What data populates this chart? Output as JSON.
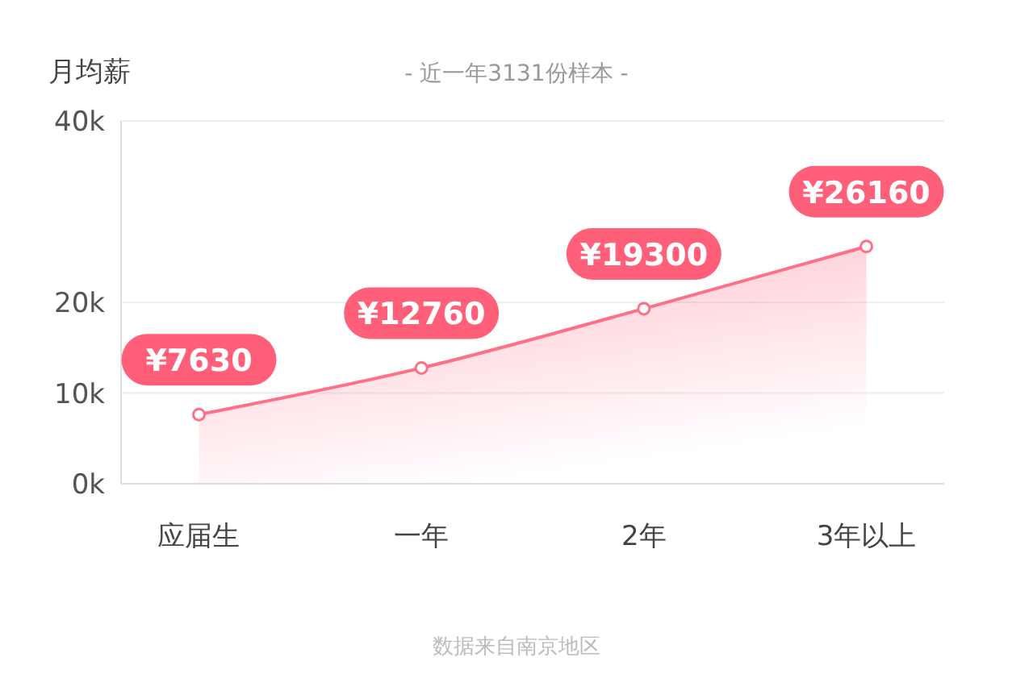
{
  "chart_data": {
    "type": "area",
    "ylabel": "月均薪",
    "subtitle": "- 近一年3131份样本 -",
    "categories": [
      "应届生",
      "一年",
      "2年",
      "3年以上"
    ],
    "values": [
      7630,
      12760,
      19300,
      26160
    ],
    "value_labels": [
      "¥7630",
      "¥12760",
      "¥19300",
      "¥26160"
    ],
    "color": "#ff6f86",
    "marker": "circle",
    "grid": "y",
    "ylim": [
      0,
      40000
    ],
    "yticks": [
      {
        "value": 0,
        "label": "0k"
      },
      {
        "value": 10000,
        "label": "10k"
      },
      {
        "value": 20000,
        "label": "20k"
      },
      {
        "value": 40000,
        "label": "40k"
      }
    ],
    "annotations": [
      "数据来自南京地区"
    ]
  }
}
